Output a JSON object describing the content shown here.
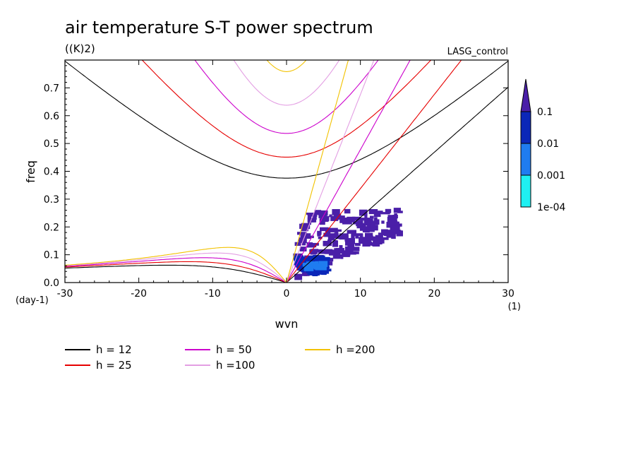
{
  "chart_data": {
    "type": "heatmap",
    "title": "air temperature S-T power spectrum",
    "subtitle": "((K)2)",
    "label_right": "LASG_control",
    "xlabel": "wvn",
    "ylabel": "freq",
    "x_unit": "(1)",
    "y_unit": "(day-1)",
    "xlim": [
      -30,
      30
    ],
    "ylim": [
      0,
      0.8
    ],
    "x_ticks": [
      "-30",
      "-20",
      "-10",
      "0",
      "10",
      "20",
      "30"
    ],
    "y_ticks": [
      "0.0",
      "0.1",
      "0.2",
      "0.3",
      "0.4",
      "0.5",
      "0.6",
      "0.7"
    ],
    "colorbar": {
      "labels": [
        "0.1",
        "0.01",
        "0.001",
        "1e-04"
      ],
      "colors": [
        "#4a1fa8",
        "#0b27b8",
        "#1f7cf0",
        "#1ff0f2"
      ]
    },
    "series": [
      {
        "name": "h = 12",
        "h": 12,
        "color": "#000000"
      },
      {
        "name": "h = 25",
        "h": 25,
        "color": "#e60000"
      },
      {
        "name": "h = 50",
        "h": 50,
        "color": "#cc00cc"
      },
      {
        "name": "h =100",
        "h": 100,
        "color": "#e39ee3"
      },
      {
        "name": "h =200",
        "h": 200,
        "color": "#f2c200"
      }
    ],
    "power_patches": [
      {
        "level": 4,
        "x": [
          1.5,
          16
        ],
        "y": [
          0.01,
          0.26
        ]
      },
      {
        "level": 3,
        "x": [
          1.5,
          5.5
        ],
        "y": [
          0.03,
          0.09
        ]
      },
      {
        "level": 2,
        "x": [
          2.5,
          5
        ],
        "y": [
          0.05,
          0.07
        ]
      }
    ]
  }
}
